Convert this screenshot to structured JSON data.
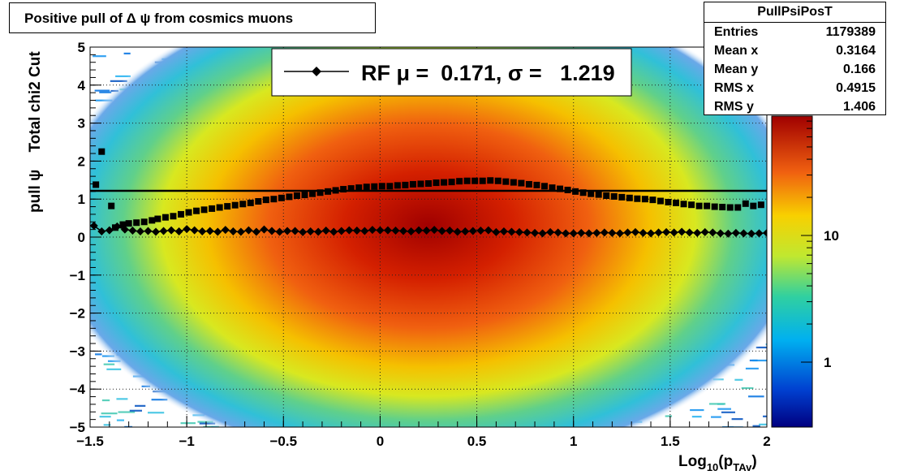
{
  "title": "Positive pull of Δ ψ from cosmics muons",
  "stats": {
    "name": "PullPsiPosT",
    "rows": [
      {
        "label": "Entries",
        "value": "1179389"
      },
      {
        "label": "Mean x",
        "value": "0.3164"
      },
      {
        "label": "Mean y",
        "value": "0.166"
      },
      {
        "label": "RMS x",
        "value": "0.4915"
      },
      {
        "label": "RMS y",
        "value": "1.406"
      }
    ]
  },
  "chart_data": {
    "type": "heatmap",
    "xlabel_main": "Log",
    "xlabel_sub1": "10",
    "xlabel_mid": "(p",
    "xlabel_sub2": "TAv",
    "xlabel_end": ")",
    "ylabel_1": "pull ψ",
    "ylabel_2": "Total chi2 Cut",
    "xlim": [
      -1.5,
      2.0
    ],
    "ylim": [
      -5,
      5
    ],
    "xticks": [
      -1.5,
      -1,
      -0.5,
      0,
      0.5,
      1,
      1.5,
      2
    ],
    "xtick_labels": [
      "−1.5",
      "−1",
      "−0.5",
      "0",
      "0.5",
      "1",
      "1.5",
      "2"
    ],
    "yticks": [
      -5,
      -4,
      -3,
      -2,
      -1,
      0,
      1,
      2,
      3,
      4,
      5
    ],
    "ytick_labels": [
      "−5",
      "−4",
      "−3",
      "−2",
      "−1",
      "0",
      "1",
      "2",
      "3",
      "4",
      "5"
    ],
    "grid": true,
    "z_scale": "log",
    "colorbar_ticks": [
      1,
      10
    ],
    "colorbar_labels": [
      "1",
      "10"
    ],
    "fit_line_y": 1.219,
    "legend": {
      "text": "RF μ =  0.171, σ =   1.219",
      "placement": "top-center"
    },
    "series": [
      {
        "marker": "square",
        "x": [
          -1.47,
          -1.44,
          -1.39,
          -1.37,
          -1.33,
          -1.3,
          -1.26,
          -1.22,
          -1.18,
          -1.15,
          -1.11,
          -1.07,
          -1.03,
          -0.99,
          -0.95,
          -0.91,
          -0.87,
          -0.83,
          -0.79,
          -0.75,
          -0.71,
          -0.67,
          -0.63,
          -0.59,
          -0.55,
          -0.51,
          -0.47,
          -0.43,
          -0.39,
          -0.35,
          -0.31,
          -0.27,
          -0.23,
          -0.19,
          -0.15,
          -0.11,
          -0.07,
          -0.03,
          0.01,
          0.05,
          0.09,
          0.13,
          0.17,
          0.21,
          0.25,
          0.29,
          0.33,
          0.37,
          0.41,
          0.45,
          0.49,
          0.53,
          0.57,
          0.61,
          0.65,
          0.69,
          0.73,
          0.77,
          0.81,
          0.85,
          0.89,
          0.93,
          0.97,
          1.01,
          1.05,
          1.09,
          1.13,
          1.17,
          1.21,
          1.25,
          1.29,
          1.33,
          1.37,
          1.41,
          1.45,
          1.49,
          1.53,
          1.57,
          1.61,
          1.65,
          1.69,
          1.73,
          1.77,
          1.81,
          1.85,
          1.89,
          1.93,
          1.97
        ],
        "y": [
          1.38,
          2.25,
          0.82,
          0.25,
          0.33,
          0.36,
          0.38,
          0.4,
          0.44,
          0.48,
          0.52,
          0.55,
          0.6,
          0.65,
          0.69,
          0.72,
          0.75,
          0.78,
          0.81,
          0.84,
          0.87,
          0.9,
          0.94,
          0.98,
          1.0,
          1.03,
          1.06,
          1.09,
          1.11,
          1.14,
          1.17,
          1.2,
          1.23,
          1.26,
          1.28,
          1.3,
          1.32,
          1.33,
          1.34,
          1.34,
          1.36,
          1.37,
          1.39,
          1.4,
          1.41,
          1.43,
          1.44,
          1.45,
          1.47,
          1.48,
          1.48,
          1.48,
          1.49,
          1.48,
          1.46,
          1.44,
          1.42,
          1.39,
          1.37,
          1.34,
          1.3,
          1.27,
          1.24,
          1.2,
          1.17,
          1.14,
          1.12,
          1.09,
          1.07,
          1.05,
          1.03,
          1.01,
          1.0,
          0.98,
          0.95,
          0.92,
          0.9,
          0.87,
          0.85,
          0.82,
          0.82,
          0.8,
          0.79,
          0.78,
          0.78,
          0.88,
          0.82,
          0.85
        ]
      },
      {
        "marker": "diamond",
        "x": [
          -1.48,
          -1.44,
          -1.4,
          -1.36,
          -1.32,
          -1.28,
          -1.24,
          -1.2,
          -1.16,
          -1.12,
          -1.08,
          -1.04,
          -1.0,
          -0.96,
          -0.92,
          -0.88,
          -0.84,
          -0.8,
          -0.76,
          -0.72,
          -0.68,
          -0.64,
          -0.6,
          -0.56,
          -0.52,
          -0.48,
          -0.44,
          -0.4,
          -0.36,
          -0.32,
          -0.28,
          -0.24,
          -0.2,
          -0.16,
          -0.12,
          -0.08,
          -0.04,
          0.0,
          0.04,
          0.08,
          0.12,
          0.16,
          0.2,
          0.24,
          0.28,
          0.32,
          0.36,
          0.4,
          0.44,
          0.48,
          0.52,
          0.56,
          0.6,
          0.64,
          0.68,
          0.72,
          0.76,
          0.8,
          0.84,
          0.88,
          0.92,
          0.96,
          1.0,
          1.04,
          1.08,
          1.12,
          1.16,
          1.2,
          1.24,
          1.28,
          1.32,
          1.36,
          1.4,
          1.44,
          1.48,
          1.52,
          1.56,
          1.6,
          1.64,
          1.68,
          1.72,
          1.76,
          1.8,
          1.84,
          1.88,
          1.92,
          1.96,
          2.0
        ],
        "y": [
          0.3,
          0.15,
          0.18,
          0.28,
          0.2,
          0.17,
          0.15,
          0.16,
          0.14,
          0.16,
          0.18,
          0.15,
          0.21,
          0.18,
          0.15,
          0.16,
          0.14,
          0.19,
          0.15,
          0.14,
          0.18,
          0.14,
          0.2,
          0.16,
          0.14,
          0.16,
          0.16,
          0.13,
          0.15,
          0.14,
          0.17,
          0.14,
          0.16,
          0.18,
          0.17,
          0.16,
          0.19,
          0.18,
          0.18,
          0.17,
          0.16,
          0.15,
          0.18,
          0.17,
          0.19,
          0.16,
          0.17,
          0.14,
          0.15,
          0.16,
          0.17,
          0.18,
          0.13,
          0.15,
          0.14,
          0.13,
          0.12,
          0.11,
          0.1,
          0.13,
          0.12,
          0.1,
          0.1,
          0.11,
          0.1,
          0.11,
          0.12,
          0.11,
          0.1,
          0.12,
          0.13,
          0.11,
          0.1,
          0.12,
          0.13,
          0.12,
          0.14,
          0.12,
          0.11,
          0.13,
          0.12,
          0.1,
          0.09,
          0.11,
          0.1,
          0.09,
          0.1,
          0.11
        ]
      }
    ]
  }
}
